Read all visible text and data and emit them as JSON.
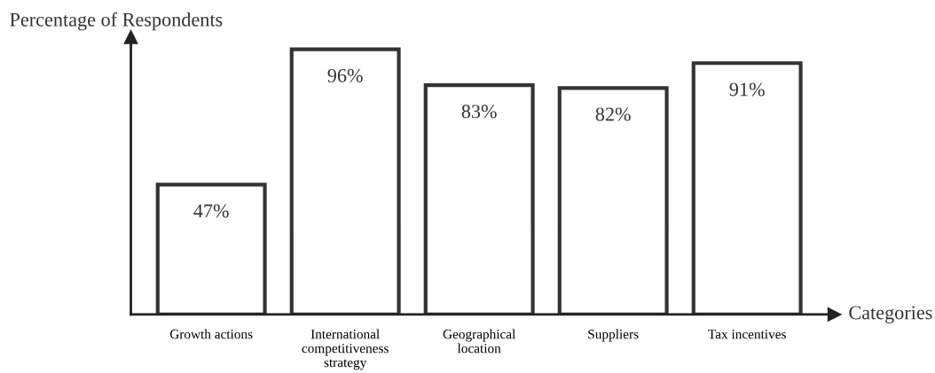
{
  "chart_data": {
    "type": "bar",
    "xlabel": "Categories",
    "ylabel": "Percentage of Respondents",
    "categories": [
      "Growth actions",
      "International\ncompetitiveness\nstrategy",
      "Geographical\nlocation",
      "Suppliers",
      "Tax incentives"
    ],
    "values": [
      47,
      96,
      83,
      82,
      91
    ],
    "value_labels": [
      "47%",
      "96%",
      "83%",
      "82%",
      "91%"
    ],
    "color": "#333333",
    "tick_labels": "x",
    "grid": false,
    "legend": false
  }
}
